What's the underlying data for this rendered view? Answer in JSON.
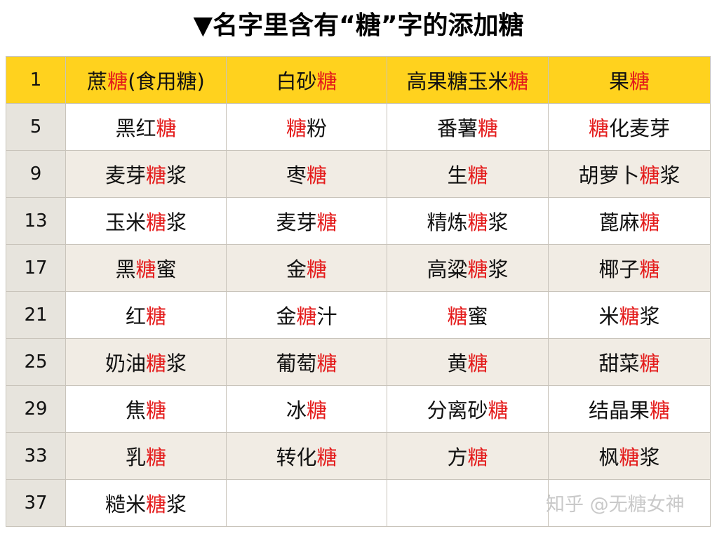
{
  "title": "▼名字里含有“糖”字的添加糖",
  "accent_color": "#e41b1b",
  "header_color": "#ffd21e",
  "rows": [
    {
      "num": "1",
      "cells": [
        [
          {
            "t": "蔗"
          },
          {
            "t": "糖",
            "r": true
          },
          {
            "t": "(食用糖)"
          }
        ],
        [
          {
            "t": "白砂"
          },
          {
            "t": "糖",
            "r": true
          }
        ],
        [
          {
            "t": "高果糖玉米"
          },
          {
            "t": "糖",
            "r": true
          }
        ],
        [
          {
            "t": "果"
          },
          {
            "t": "糖",
            "r": true
          }
        ]
      ]
    },
    {
      "num": "5",
      "cells": [
        [
          {
            "t": "黑红"
          },
          {
            "t": "糖",
            "r": true
          }
        ],
        [
          {
            "t": "糖",
            "r": true
          },
          {
            "t": "粉"
          }
        ],
        [
          {
            "t": "番薯"
          },
          {
            "t": "糖",
            "r": true
          }
        ],
        [
          {
            "t": "糖",
            "r": true
          },
          {
            "t": "化麦芽"
          }
        ]
      ]
    },
    {
      "num": "9",
      "cells": [
        [
          {
            "t": "麦芽"
          },
          {
            "t": "糖",
            "r": true
          },
          {
            "t": "浆"
          }
        ],
        [
          {
            "t": "枣"
          },
          {
            "t": "糖",
            "r": true
          }
        ],
        [
          {
            "t": "生"
          },
          {
            "t": "糖",
            "r": true
          }
        ],
        [
          {
            "t": "胡萝卜"
          },
          {
            "t": "糖",
            "r": true
          },
          {
            "t": "浆"
          }
        ]
      ]
    },
    {
      "num": "13",
      "cells": [
        [
          {
            "t": "玉米"
          },
          {
            "t": "糖",
            "r": true
          },
          {
            "t": "浆"
          }
        ],
        [
          {
            "t": "麦芽"
          },
          {
            "t": "糖",
            "r": true
          }
        ],
        [
          {
            "t": "精炼"
          },
          {
            "t": "糖",
            "r": true
          },
          {
            "t": "浆"
          }
        ],
        [
          {
            "t": "蓖麻"
          },
          {
            "t": "糖",
            "r": true
          }
        ]
      ]
    },
    {
      "num": "17",
      "cells": [
        [
          {
            "t": "黑"
          },
          {
            "t": "糖",
            "r": true
          },
          {
            "t": "蜜"
          }
        ],
        [
          {
            "t": "金"
          },
          {
            "t": "糖",
            "r": true
          }
        ],
        [
          {
            "t": "高粱"
          },
          {
            "t": "糖",
            "r": true
          },
          {
            "t": "浆"
          }
        ],
        [
          {
            "t": "椰子"
          },
          {
            "t": "糖",
            "r": true
          }
        ]
      ]
    },
    {
      "num": "21",
      "cells": [
        [
          {
            "t": "红"
          },
          {
            "t": "糖",
            "r": true
          }
        ],
        [
          {
            "t": "金"
          },
          {
            "t": "糖",
            "r": true
          },
          {
            "t": "汁"
          }
        ],
        [
          {
            "t": "糖",
            "r": true
          },
          {
            "t": "蜜"
          }
        ],
        [
          {
            "t": "米"
          },
          {
            "t": "糖",
            "r": true
          },
          {
            "t": "浆"
          }
        ]
      ]
    },
    {
      "num": "25",
      "cells": [
        [
          {
            "t": "奶油"
          },
          {
            "t": "糖",
            "r": true
          },
          {
            "t": "浆"
          }
        ],
        [
          {
            "t": "葡萄"
          },
          {
            "t": "糖",
            "r": true
          }
        ],
        [
          {
            "t": "黄"
          },
          {
            "t": "糖",
            "r": true
          }
        ],
        [
          {
            "t": "甜菜"
          },
          {
            "t": "糖",
            "r": true
          }
        ]
      ]
    },
    {
      "num": "29",
      "cells": [
        [
          {
            "t": "焦"
          },
          {
            "t": "糖",
            "r": true
          }
        ],
        [
          {
            "t": "冰"
          },
          {
            "t": "糖",
            "r": true
          }
        ],
        [
          {
            "t": "分离砂"
          },
          {
            "t": "糖",
            "r": true
          }
        ],
        [
          {
            "t": "结晶果"
          },
          {
            "t": "糖",
            "r": true
          }
        ]
      ]
    },
    {
      "num": "33",
      "cells": [
        [
          {
            "t": "乳"
          },
          {
            "t": "糖",
            "r": true
          }
        ],
        [
          {
            "t": "转化"
          },
          {
            "t": "糖",
            "r": true
          }
        ],
        [
          {
            "t": "方"
          },
          {
            "t": "糖",
            "r": true
          }
        ],
        [
          {
            "t": "枫"
          },
          {
            "t": "糖",
            "r": true
          },
          {
            "t": "浆"
          }
        ]
      ]
    },
    {
      "num": "37",
      "cells": [
        [
          {
            "t": "糙米"
          },
          {
            "t": "糖",
            "r": true
          },
          {
            "t": "浆"
          }
        ],
        [],
        [],
        []
      ]
    }
  ],
  "watermark": "知乎 @无糖女神"
}
